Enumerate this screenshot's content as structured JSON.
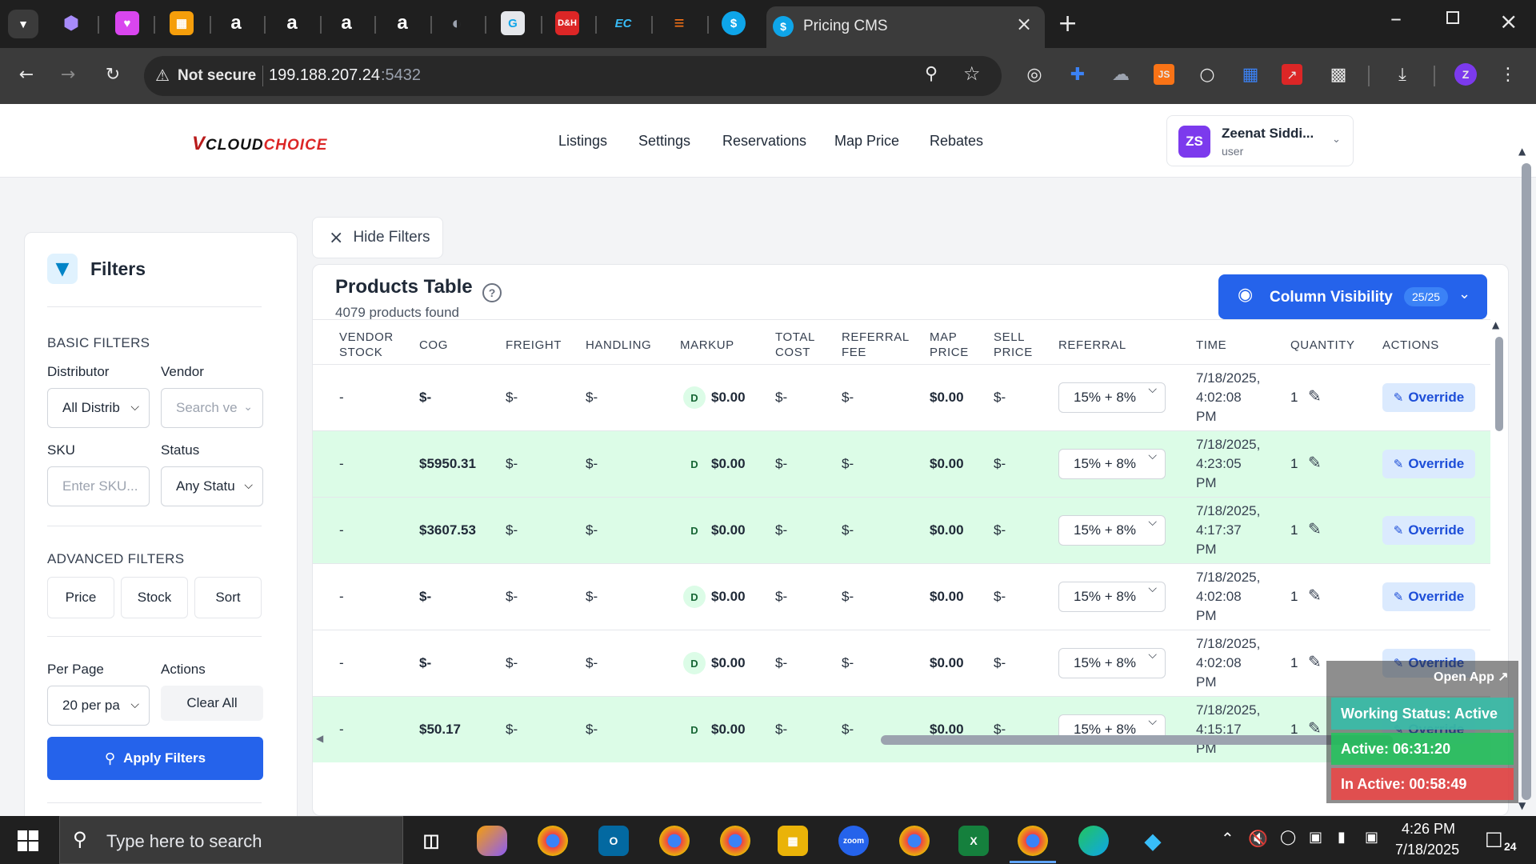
{
  "browser": {
    "active_tab_title": "Pricing CMS",
    "security_label": "Not secure",
    "url_host": "199.188.207.24",
    "url_port": ":5432",
    "profile_letter": "Z"
  },
  "app": {
    "logo_text": "VCLOUDCHOICE",
    "nav": [
      "Listings",
      "Settings",
      "Reservations",
      "Map Price",
      "Rebates"
    ],
    "user": {
      "initials": "ZS",
      "name": "Zeenat Siddi...",
      "role": "user"
    }
  },
  "filters": {
    "title": "Filters",
    "basic_heading": "BASIC FILTERS",
    "distributor_label": "Distributor",
    "distributor_value": "All Distrib",
    "vendor_label": "Vendor",
    "vendor_placeholder": "Search ve",
    "sku_label": "SKU",
    "sku_placeholder": "Enter SKU...",
    "status_label": "Status",
    "status_value": "Any Statu",
    "advanced_heading": "ADVANCED FILTERS",
    "adv_buttons": [
      "Price",
      "Stock",
      "Sort"
    ],
    "per_page_label": "Per Page",
    "per_page_value": "20 per pa",
    "actions_label": "Actions",
    "clear_all": "Clear All",
    "apply": "Apply Filters"
  },
  "hide_filters": "Hide Filters",
  "table": {
    "title": "Products Table",
    "subtitle": "4079 products found",
    "column_visibility": "Column Visibility",
    "column_count": "25/25",
    "headers": [
      [
        "VENDOR",
        "STOCK"
      ],
      [
        "COG"
      ],
      [
        "FREIGHT"
      ],
      [
        "HANDLING"
      ],
      [
        "MARKUP"
      ],
      [
        "TOTAL",
        "COST"
      ],
      [
        "REFERRAL",
        "FEE"
      ],
      [
        "MAP",
        "PRICE"
      ],
      [
        "SELL",
        "PRICE"
      ],
      [
        "REFERRAL"
      ],
      [
        "TIME"
      ],
      [
        "QUANTITY"
      ],
      [
        "ACTIONS"
      ]
    ],
    "rows": [
      {
        "vendor_stock": "-",
        "cog": "$-",
        "freight": "$-",
        "handling": "$-",
        "badge": "D",
        "markup": "$0.00",
        "total_cost": "$-",
        "referral_fee": "$-",
        "map_price": "$0.00",
        "sell_price": "$-",
        "referral": "15% + 8%",
        "time": [
          "7/18/2025,",
          "4:02:08",
          "PM"
        ],
        "quantity": "1",
        "action": "Override",
        "highlight": false
      },
      {
        "vendor_stock": "-",
        "cog": "$5950.31",
        "freight": "$-",
        "handling": "$-",
        "badge": "D",
        "markup": "$0.00",
        "total_cost": "$-",
        "referral_fee": "$-",
        "map_price": "$0.00",
        "sell_price": "$-",
        "referral": "15% + 8%",
        "time": [
          "7/18/2025,",
          "4:23:05",
          "PM"
        ],
        "quantity": "1",
        "action": "Override",
        "highlight": true
      },
      {
        "vendor_stock": "-",
        "cog": "$3607.53",
        "freight": "$-",
        "handling": "$-",
        "badge": "D",
        "markup": "$0.00",
        "total_cost": "$-",
        "referral_fee": "$-",
        "map_price": "$0.00",
        "sell_price": "$-",
        "referral": "15% + 8%",
        "time": [
          "7/18/2025,",
          "4:17:37",
          "PM"
        ],
        "quantity": "1",
        "action": "Override",
        "highlight": true
      },
      {
        "vendor_stock": "-",
        "cog": "$-",
        "freight": "$-",
        "handling": "$-",
        "badge": "D",
        "markup": "$0.00",
        "total_cost": "$-",
        "referral_fee": "$-",
        "map_price": "$0.00",
        "sell_price": "$-",
        "referral": "15% + 8%",
        "time": [
          "7/18/2025,",
          "4:02:08",
          "PM"
        ],
        "quantity": "1",
        "action": "Override",
        "highlight": false
      },
      {
        "vendor_stock": "-",
        "cog": "$-",
        "freight": "$-",
        "handling": "$-",
        "badge": "D",
        "markup": "$0.00",
        "total_cost": "$-",
        "referral_fee": "$-",
        "map_price": "$0.00",
        "sell_price": "$-",
        "referral": "15% + 8%",
        "time": [
          "7/18/2025,",
          "4:02:08",
          "PM"
        ],
        "quantity": "1",
        "action": "Override",
        "highlight": false
      },
      {
        "vendor_stock": "-",
        "cog": "$50.17",
        "freight": "$-",
        "handling": "$-",
        "badge": "D",
        "markup": "$0.00",
        "total_cost": "$-",
        "referral_fee": "$-",
        "map_price": "$0.00",
        "sell_price": "$-",
        "referral": "15% + 8%",
        "time": [
          "7/18/2025,",
          "4:15:17",
          "PM"
        ],
        "quantity": "1",
        "action": "Override",
        "highlight": true
      }
    ]
  },
  "widget": {
    "open_app": "Open App ↗",
    "working_status": "Working Status: Active",
    "active": "Active: 06:31:20",
    "inactive": "In Active: 00:58:49"
  },
  "taskbar": {
    "search_placeholder": "Type here to search",
    "time": "4:26 PM",
    "date": "7/18/2025",
    "notif_count": "24"
  },
  "colors": {
    "primary": "#2563eb",
    "row_highlight": "#dcfce7",
    "brand_red": "#b91c1c"
  }
}
